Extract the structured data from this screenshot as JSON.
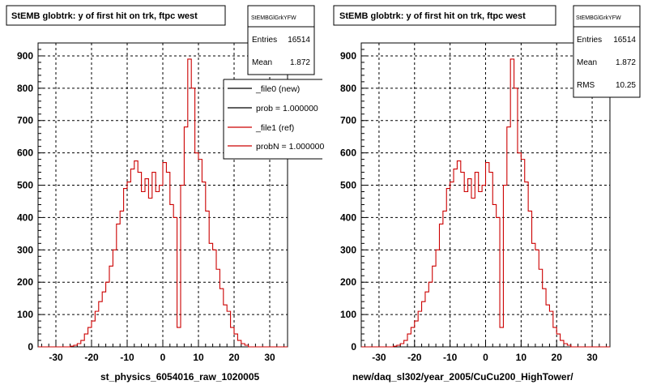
{
  "chart_data": [
    {
      "type": "histogram",
      "title": "StEMB globtrk: y of first hit on trk, ftpc west",
      "xlabel": "st_physics_6054016_raw_1020005",
      "ylabel": "",
      "xlim": [
        -35,
        35
      ],
      "ylim": [
        0,
        940
      ],
      "grid": true,
      "xticks": [
        "-30",
        "-20",
        "-10",
        "0",
        "10",
        "20",
        "30"
      ],
      "yticks": [
        "0",
        "100",
        "200",
        "300",
        "400",
        "500",
        "600",
        "700",
        "800",
        "900"
      ],
      "stats": {
        "name": "StEMBGlGrkYFW",
        "rows": [
          {
            "label": "Entries",
            "value": "16514"
          },
          {
            "label": "Mean",
            "value": "1.872"
          }
        ]
      },
      "legend": {
        "placement": "top-right",
        "entries": [
          {
            "label": "_file0 (new)",
            "color": "#000000"
          },
          {
            "label": "prob = 1.000000",
            "color": "#000000"
          },
          {
            "label": "_file1 (ref)",
            "color": "#cc0000"
          },
          {
            "label": "probN = 1.000000",
            "color": "#cc0000"
          }
        ]
      },
      "series": [
        {
          "name": "_file1 (ref)",
          "color": "#cc0000",
          "bin_edges": [
            -35,
            -34,
            -33,
            -32,
            -31,
            -30,
            -29,
            -28,
            -27,
            -26,
            -25,
            -24,
            -23,
            -22,
            -21,
            -20,
            -19,
            -18,
            -17,
            -16,
            -15,
            -14,
            -13,
            -12,
            -11,
            -10,
            -9,
            -8,
            -7,
            -6,
            -5,
            -4,
            -3,
            -2,
            -1,
            0,
            1,
            2,
            3,
            4,
            5,
            6,
            7,
            8,
            9,
            10,
            11,
            12,
            13,
            14,
            15,
            16,
            17,
            18,
            19,
            20,
            21,
            22,
            23,
            24,
            25,
            26,
            27,
            28,
            29,
            30,
            31,
            32,
            33,
            34,
            35
          ],
          "values": [
            0,
            0,
            0,
            0,
            0,
            0,
            0,
            0,
            0,
            2,
            5,
            10,
            20,
            40,
            60,
            80,
            110,
            140,
            170,
            200,
            250,
            300,
            380,
            420,
            490,
            510,
            550,
            575,
            540,
            480,
            520,
            460,
            540,
            480,
            500,
            570,
            540,
            440,
            400,
            60,
            500,
            680,
            890,
            800,
            600,
            580,
            510,
            420,
            320,
            300,
            240,
            180,
            130,
            110,
            60,
            40,
            20,
            10,
            5,
            0,
            0,
            0,
            0,
            0,
            0,
            0,
            0,
            0,
            0,
            0
          ]
        }
      ]
    },
    {
      "type": "histogram",
      "title": "StEMB globtrk: y of first hit on trk, ftpc west",
      "xlabel": "new/daq_sl302/year_2005/CuCu200_HighTower/",
      "ylabel": "",
      "xlim": [
        -35,
        35
      ],
      "ylim": [
        0,
        940
      ],
      "grid": true,
      "xticks": [
        "-30",
        "-20",
        "-10",
        "0",
        "10",
        "20",
        "30"
      ],
      "yticks": [
        "0",
        "100",
        "200",
        "300",
        "400",
        "500",
        "600",
        "700",
        "800",
        "900"
      ],
      "stats": {
        "name": "StEMBGlGrkYFW",
        "rows": [
          {
            "label": "Entries",
            "value": "16514"
          },
          {
            "label": "Mean",
            "value": "1.872"
          },
          {
            "label": "RMS",
            "value": "10.25"
          }
        ]
      },
      "series": [
        {
          "name": "",
          "color": "#cc0000",
          "bin_edges": [
            -35,
            -34,
            -33,
            -32,
            -31,
            -30,
            -29,
            -28,
            -27,
            -26,
            -25,
            -24,
            -23,
            -22,
            -21,
            -20,
            -19,
            -18,
            -17,
            -16,
            -15,
            -14,
            -13,
            -12,
            -11,
            -10,
            -9,
            -8,
            -7,
            -6,
            -5,
            -4,
            -3,
            -2,
            -1,
            0,
            1,
            2,
            3,
            4,
            5,
            6,
            7,
            8,
            9,
            10,
            11,
            12,
            13,
            14,
            15,
            16,
            17,
            18,
            19,
            20,
            21,
            22,
            23,
            24,
            25,
            26,
            27,
            28,
            29,
            30,
            31,
            32,
            33,
            34,
            35
          ],
          "values": [
            0,
            0,
            0,
            0,
            0,
            0,
            0,
            0,
            0,
            2,
            5,
            10,
            20,
            40,
            60,
            80,
            110,
            140,
            170,
            200,
            250,
            300,
            380,
            420,
            490,
            510,
            550,
            575,
            540,
            480,
            520,
            460,
            540,
            480,
            500,
            570,
            540,
            440,
            400,
            60,
            500,
            680,
            890,
            800,
            600,
            580,
            510,
            420,
            320,
            300,
            240,
            180,
            130,
            110,
            60,
            40,
            20,
            10,
            5,
            0,
            0,
            0,
            0,
            0,
            0,
            0,
            0,
            0,
            0,
            0
          ]
        }
      ]
    }
  ]
}
